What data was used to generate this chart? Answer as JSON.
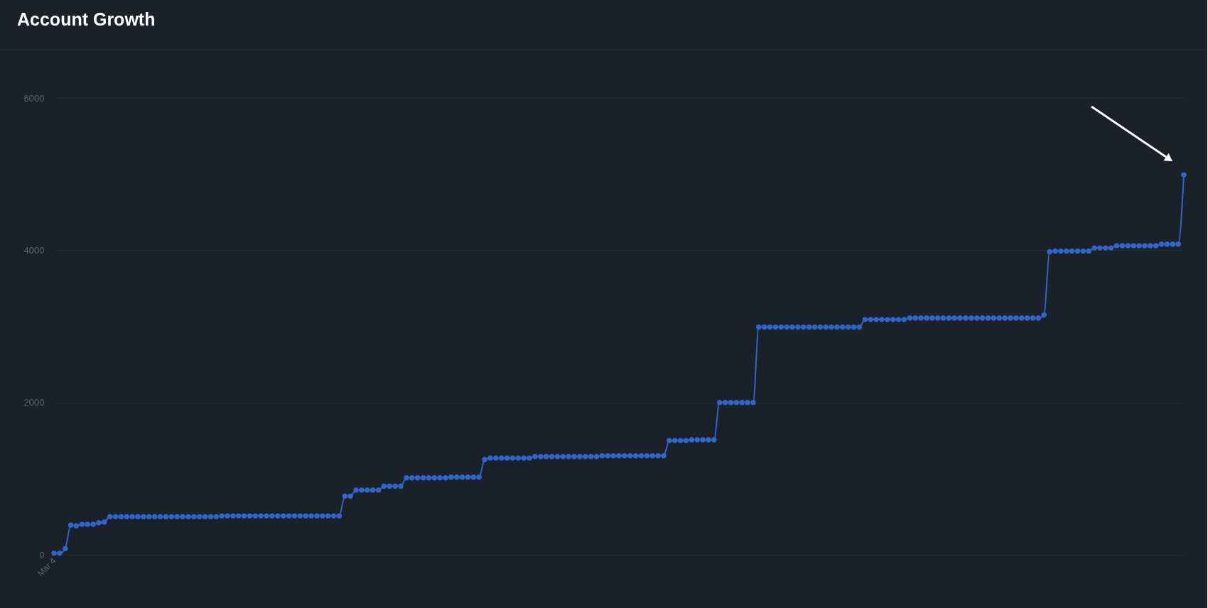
{
  "chart_data": {
    "type": "line",
    "title": "Account Growth",
    "categories": [
      "Mar 4",
      null,
      null,
      null,
      null,
      null,
      null,
      null,
      null,
      null,
      null,
      null,
      null,
      null,
      null,
      null,
      null,
      null,
      null,
      null,
      null,
      null,
      null,
      null,
      null,
      null,
      null,
      null,
      null,
      null,
      null,
      null,
      null,
      null,
      null,
      null,
      null,
      null,
      null,
      null,
      null,
      null,
      null,
      null,
      null,
      null,
      null,
      null,
      null,
      null,
      null,
      null,
      null,
      null,
      null,
      null,
      null,
      null,
      null,
      null,
      null,
      null,
      null,
      null,
      null,
      null,
      null,
      null,
      null,
      null,
      null,
      null,
      null,
      null,
      null,
      null,
      null,
      null,
      null,
      null,
      null,
      null,
      null,
      null,
      null,
      null,
      null,
      null,
      null,
      null,
      null,
      null,
      null,
      null,
      null,
      null,
      null,
      null,
      null,
      null,
      null,
      null,
      null,
      null,
      null,
      null,
      null,
      null,
      null,
      null,
      null,
      null,
      null,
      null,
      null,
      null,
      null,
      null,
      null,
      null,
      null,
      null,
      null,
      null,
      null,
      null,
      null,
      null,
      null,
      null,
      null,
      null,
      null,
      null,
      null,
      null,
      null,
      null,
      null,
      null,
      null,
      null,
      null,
      null,
      null,
      null,
      null,
      null,
      null,
      null,
      null,
      null,
      null,
      null,
      null,
      null,
      null,
      null,
      null,
      null,
      null,
      null,
      null,
      null,
      null,
      null,
      null,
      null,
      null,
      null,
      null,
      null,
      null,
      null,
      null,
      null,
      null,
      null,
      null,
      null,
      null,
      null,
      null,
      null,
      null,
      null,
      null,
      null,
      null,
      null,
      null,
      null,
      null,
      null,
      null,
      null,
      null,
      null,
      null,
      null,
      null,
      null,
      null
    ],
    "series": [
      {
        "color": "#3065cc",
        "values": [
          20,
          20,
          80,
          390,
          380,
          400,
          400,
          400,
          420,
          430,
          500,
          500,
          500,
          500,
          500,
          500,
          500,
          500,
          500,
          500,
          500,
          500,
          500,
          500,
          500,
          500,
          500,
          500,
          500,
          500,
          510,
          510,
          510,
          510,
          510,
          510,
          510,
          510,
          510,
          510,
          510,
          510,
          510,
          510,
          510,
          510,
          510,
          510,
          510,
          510,
          510,
          510,
          770,
          770,
          850,
          850,
          850,
          850,
          850,
          900,
          900,
          900,
          900,
          1010,
          1010,
          1010,
          1010,
          1010,
          1010,
          1010,
          1010,
          1020,
          1020,
          1020,
          1020,
          1020,
          1020,
          1250,
          1270,
          1270,
          1270,
          1270,
          1270,
          1270,
          1270,
          1270,
          1290,
          1290,
          1290,
          1290,
          1290,
          1290,
          1290,
          1290,
          1290,
          1290,
          1290,
          1290,
          1300,
          1300,
          1300,
          1300,
          1300,
          1300,
          1300,
          1300,
          1300,
          1300,
          1300,
          1300,
          1500,
          1500,
          1500,
          1500,
          1510,
          1510,
          1510,
          1510,
          1510,
          2000,
          2000,
          2000,
          2000,
          2000,
          2000,
          2000,
          2990,
          2990,
          2990,
          2990,
          2990,
          2990,
          2990,
          2990,
          2990,
          2990,
          2990,
          2990,
          2990,
          2990,
          2990,
          2990,
          2990,
          2990,
          2990,
          3090,
          3090,
          3090,
          3090,
          3090,
          3090,
          3090,
          3090,
          3110,
          3110,
          3110,
          3110,
          3110,
          3110,
          3110,
          3110,
          3110,
          3110,
          3110,
          3110,
          3110,
          3110,
          3110,
          3110,
          3110,
          3110,
          3110,
          3110,
          3110,
          3110,
          3110,
          3110,
          3150,
          3980,
          3990,
          3990,
          3990,
          3990,
          3990,
          3990,
          3990,
          4030,
          4030,
          4030,
          4030,
          4060,
          4060,
          4060,
          4060,
          4060,
          4060,
          4060,
          4060,
          4080,
          4080,
          4080,
          4080,
          4990
        ]
      }
    ],
    "ylim": [
      0,
      6000
    ],
    "yticks": [
      0,
      2000,
      4000,
      6000
    ],
    "grid": "y",
    "marker": "circle",
    "line_style": "solid"
  }
}
